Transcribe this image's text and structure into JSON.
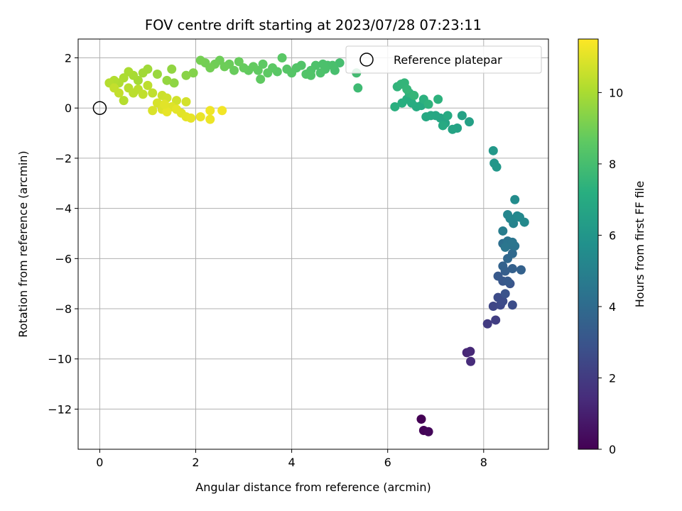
{
  "chart_data": {
    "type": "scatter",
    "title": "FOV centre drift starting at 2023/07/28 07:23:11",
    "xlabel": "Angular distance from reference (arcmin)",
    "ylabel": "Rotation from reference (arcmin)",
    "xlim": [
      -0.45,
      9.35
    ],
    "ylim": [
      -13.6,
      2.75
    ],
    "xticks": [
      0,
      2,
      4,
      6,
      8
    ],
    "yticks": [
      -12,
      -10,
      -8,
      -6,
      -4,
      -2,
      0,
      2
    ],
    "grid": true,
    "legend": {
      "position": "top-right",
      "entries": [
        "Reference platepar"
      ]
    },
    "reference_point": {
      "x": 0,
      "y": 0,
      "label": "Reference platepar"
    },
    "colorbar": {
      "label": "Hours from first FF file",
      "range": [
        0,
        11.5
      ],
      "ticks": [
        0,
        2,
        4,
        6,
        8,
        10
      ],
      "colormap": "viridis"
    },
    "points": [
      [
        6.7,
        -12.4,
        0.0
      ],
      [
        6.75,
        -12.85,
        0.1
      ],
      [
        6.85,
        -12.9,
        0.2
      ],
      [
        7.65,
        -9.75,
        1.2
      ],
      [
        7.72,
        -9.7,
        1.3
      ],
      [
        7.73,
        -10.1,
        1.4
      ],
      [
        8.08,
        -8.6,
        2.0
      ],
      [
        8.25,
        -8.45,
        2.1
      ],
      [
        8.2,
        -7.9,
        2.4
      ],
      [
        8.35,
        -7.85,
        2.5
      ],
      [
        8.3,
        -7.55,
        2.6
      ],
      [
        8.4,
        -7.7,
        2.65
      ],
      [
        8.6,
        -7.85,
        2.7
      ],
      [
        8.45,
        -7.4,
        2.9
      ],
      [
        8.55,
        -7.0,
        3.0
      ],
      [
        8.4,
        -6.9,
        3.1
      ],
      [
        8.3,
        -6.7,
        3.2
      ],
      [
        8.5,
        -6.9,
        3.25
      ],
      [
        8.45,
        -6.5,
        3.4
      ],
      [
        8.6,
        -6.4,
        3.5
      ],
      [
        8.78,
        -6.45,
        3.55
      ],
      [
        8.4,
        -6.3,
        3.6
      ],
      [
        8.5,
        -6.0,
        3.8
      ],
      [
        8.6,
        -5.8,
        3.9
      ],
      [
        8.4,
        -5.4,
        4.2
      ],
      [
        8.55,
        -5.45,
        4.3
      ],
      [
        8.65,
        -5.5,
        4.35
      ],
      [
        8.5,
        -5.3,
        4.4
      ],
      [
        8.6,
        -5.35,
        4.45
      ],
      [
        8.45,
        -5.55,
        4.5
      ],
      [
        8.4,
        -4.9,
        4.8
      ],
      [
        8.62,
        -4.6,
        5.1
      ],
      [
        8.55,
        -4.4,
        5.2
      ],
      [
        8.5,
        -4.25,
        5.25
      ],
      [
        8.7,
        -4.3,
        5.3
      ],
      [
        8.75,
        -4.35,
        5.35
      ],
      [
        8.85,
        -4.55,
        5.4
      ],
      [
        8.65,
        -3.65,
        5.5
      ],
      [
        8.22,
        -2.2,
        6.0
      ],
      [
        8.27,
        -2.35,
        6.05
      ],
      [
        8.2,
        -1.7,
        6.1
      ],
      [
        7.7,
        -0.55,
        6.5
      ],
      [
        7.55,
        -0.3,
        6.55
      ],
      [
        7.45,
        -0.8,
        6.6
      ],
      [
        7.35,
        -0.85,
        6.65
      ],
      [
        7.2,
        -0.6,
        6.7
      ],
      [
        7.1,
        -0.4,
        6.75
      ],
      [
        7.0,
        -0.3,
        6.8
      ],
      [
        6.9,
        -0.3,
        6.85
      ],
      [
        6.8,
        -0.35,
        6.9
      ],
      [
        7.15,
        -0.7,
        6.95
      ],
      [
        7.25,
        -0.3,
        7.0
      ],
      [
        6.7,
        0.1,
        7.0
      ],
      [
        6.6,
        0.05,
        7.05
      ],
      [
        6.5,
        0.2,
        7.1
      ],
      [
        6.4,
        0.35,
        7.15
      ],
      [
        6.3,
        0.2,
        7.2
      ],
      [
        6.15,
        0.05,
        7.25
      ],
      [
        6.75,
        0.35,
        7.3
      ],
      [
        7.05,
        0.35,
        7.35
      ],
      [
        6.85,
        0.15,
        7.4
      ],
      [
        6.45,
        0.6,
        7.4
      ],
      [
        6.2,
        0.85,
        7.45
      ],
      [
        6.35,
        1.0,
        7.5
      ],
      [
        6.28,
        0.95,
        7.5
      ],
      [
        6.4,
        0.75,
        7.55
      ],
      [
        6.55,
        0.5,
        7.55
      ],
      [
        5.38,
        0.8,
        7.8
      ],
      [
        5.35,
        1.4,
        7.9
      ],
      [
        5.0,
        1.8,
        8.0
      ],
      [
        4.9,
        1.5,
        8.05
      ],
      [
        4.85,
        1.7,
        8.1
      ],
      [
        4.75,
        1.7,
        8.1
      ],
      [
        4.7,
        1.55,
        8.15
      ],
      [
        4.6,
        1.4,
        8.2
      ],
      [
        4.5,
        1.7,
        8.2
      ],
      [
        4.4,
        1.5,
        8.25
      ],
      [
        4.3,
        1.35,
        8.3
      ],
      [
        4.2,
        1.7,
        8.3
      ],
      [
        4.1,
        1.6,
        8.35
      ],
      [
        4.0,
        1.4,
        8.4
      ],
      [
        3.9,
        1.55,
        8.4
      ],
      [
        3.8,
        2.0,
        8.5
      ],
      [
        3.7,
        1.45,
        8.5
      ],
      [
        3.6,
        1.6,
        8.55
      ],
      [
        3.5,
        1.4,
        8.6
      ],
      [
        3.4,
        1.75,
        8.6
      ],
      [
        3.3,
        1.5,
        8.65
      ],
      [
        3.2,
        1.65,
        8.7
      ],
      [
        3.1,
        1.5,
        8.7
      ],
      [
        3.0,
        1.6,
        8.75
      ],
      [
        2.9,
        1.85,
        8.8
      ],
      [
        2.8,
        1.5,
        8.8
      ],
      [
        2.7,
        1.75,
        8.85
      ],
      [
        2.6,
        1.65,
        8.9
      ],
      [
        2.5,
        1.9,
        8.9
      ],
      [
        2.4,
        1.75,
        8.95
      ],
      [
        2.3,
        1.6,
        9.0
      ],
      [
        2.2,
        1.8,
        9.0
      ],
      [
        2.1,
        1.9,
        9.05
      ],
      [
        4.65,
        1.75,
        8.15
      ],
      [
        3.35,
        1.15,
        8.65
      ],
      [
        4.4,
        1.3,
        8.3
      ],
      [
        1.95,
        1.4,
        9.3
      ],
      [
        1.8,
        1.3,
        9.4
      ],
      [
        1.55,
        1.0,
        9.5
      ],
      [
        1.5,
        1.55,
        9.55
      ],
      [
        1.4,
        1.1,
        9.6
      ],
      [
        1.2,
        1.35,
        9.7
      ],
      [
        1.0,
        1.55,
        9.8
      ],
      [
        0.9,
        1.4,
        9.85
      ],
      [
        0.8,
        1.1,
        9.9
      ],
      [
        0.7,
        1.3,
        9.95
      ],
      [
        0.6,
        1.45,
        10.0
      ],
      [
        0.5,
        1.2,
        10.05
      ],
      [
        0.4,
        1.0,
        10.1
      ],
      [
        0.3,
        1.1,
        10.15
      ],
      [
        0.2,
        1.0,
        10.2
      ],
      [
        0.5,
        0.3,
        10.2
      ],
      [
        0.6,
        0.8,
        10.25
      ],
      [
        0.7,
        0.6,
        10.3
      ],
      [
        0.8,
        0.75,
        10.3
      ],
      [
        1.0,
        0.9,
        10.35
      ],
      [
        1.1,
        0.6,
        10.4
      ],
      [
        0.9,
        0.55,
        10.4
      ],
      [
        0.4,
        0.6,
        10.45
      ],
      [
        0.3,
        0.8,
        10.45
      ],
      [
        1.3,
        0.5,
        10.6
      ],
      [
        1.4,
        0.4,
        10.65
      ],
      [
        1.6,
        0.3,
        10.7
      ],
      [
        1.8,
        0.25,
        10.75
      ],
      [
        1.2,
        0.2,
        10.8
      ],
      [
        1.1,
        -0.1,
        10.85
      ],
      [
        1.3,
        -0.05,
        10.9
      ],
      [
        1.5,
        0.05,
        10.95
      ],
      [
        1.7,
        -0.2,
        11.0
      ],
      [
        1.8,
        -0.35,
        11.05
      ],
      [
        1.9,
        -0.4,
        11.1
      ],
      [
        2.1,
        -0.35,
        11.15
      ],
      [
        2.3,
        -0.45,
        11.2
      ],
      [
        2.3,
        -0.1,
        11.25
      ],
      [
        2.55,
        -0.1,
        11.3
      ],
      [
        1.4,
        -0.15,
        11.1
      ],
      [
        1.35,
        0.15,
        11.0
      ],
      [
        1.6,
        -0.05,
        11.05
      ]
    ]
  }
}
